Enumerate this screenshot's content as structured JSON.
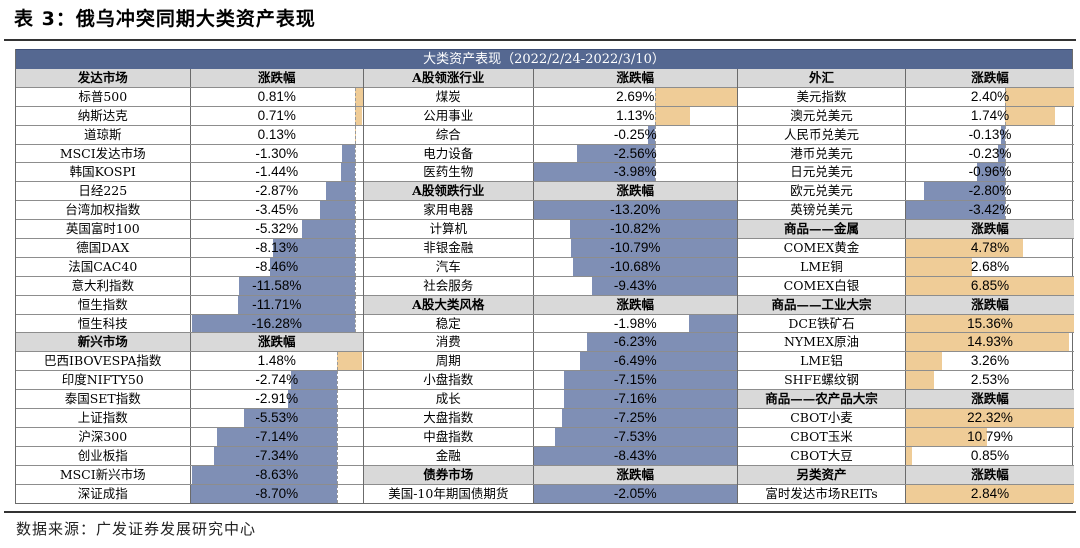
{
  "title": "表 3：俄乌冲突同期大类资产表现",
  "table_title": "大类资产表现（2022/2/24-2022/3/10）",
  "source": "数据来源：广发证券发展研究中心",
  "colors": {
    "band": "#556891",
    "negative_bar": "#7f8fb5",
    "positive_bar": "#efcc97",
    "header_row": "#d9d9d9"
  },
  "columns": [
    {
      "name_width": 175,
      "val_width": 173,
      "sections": [
        {
          "header": "发达市场",
          "value_header": "涨跌幅",
          "zero_pct": 95.4,
          "scale_pct_per_unit": 5.82,
          "rows": [
            {
              "name": "标普500",
              "value": "0.81%",
              "num": 0.81
            },
            {
              "name": "纳斯达克",
              "value": "0.71%",
              "num": 0.71
            },
            {
              "name": "道琼斯",
              "value": "0.13%",
              "num": 0.13
            },
            {
              "name": "MSCI发达市场",
              "value": "-1.30%",
              "num": -1.3
            },
            {
              "name": "韩国KOSPI",
              "value": "-1.44%",
              "num": -1.44
            },
            {
              "name": "日经225",
              "value": "-2.87%",
              "num": -2.87
            },
            {
              "name": "台湾加权指数",
              "value": "-3.45%",
              "num": -3.45
            },
            {
              "name": "英国富时100",
              "value": "-5.32%",
              "num": -5.32
            },
            {
              "name": "德国DAX",
              "value": "-8.13%",
              "num": -8.13
            },
            {
              "name": "法国CAC40",
              "value": "-8.46%",
              "num": -8.46
            },
            {
              "name": "意大利指数",
              "value": "-11.58%",
              "num": -11.58
            },
            {
              "name": "恒生指数",
              "value": "-11.71%",
              "num": -11.71
            },
            {
              "name": "恒生科技",
              "value": "-16.28%",
              "num": -16.28
            }
          ]
        },
        {
          "header": "新兴市场",
          "value_header": "涨跌幅",
          "zero_pct": 85.0,
          "scale_pct_per_unit": 9.75,
          "rows": [
            {
              "name": "巴西IBOVESPA指数",
              "value": "1.48%",
              "num": 1.48
            },
            {
              "name": "印度NIFTY50",
              "value": "-2.74%",
              "num": -2.74
            },
            {
              "name": "泰国SET指数",
              "value": "-2.91%",
              "num": -2.91
            },
            {
              "name": "上证指数",
              "value": "-5.53%",
              "num": -5.53
            },
            {
              "name": "沪深300",
              "value": "-7.14%",
              "num": -7.14
            },
            {
              "name": "创业板指",
              "value": "-7.34%",
              "num": -7.34
            },
            {
              "name": "MSCI新兴市场",
              "value": "-8.63%",
              "num": -8.63
            },
            {
              "name": "深证成指",
              "value": "-8.70%",
              "num": -8.7
            }
          ]
        }
      ]
    },
    {
      "name_width": 170,
      "val_width": 204,
      "sections": [
        {
          "header": "A股领涨行业",
          "value_header": "涨跌幅",
          "zero_pct": 59.8,
          "scale_pct_per_unit": 15.0,
          "rows": [
            {
              "name": "煤炭",
              "value": "2.69%",
              "num": 2.69
            },
            {
              "name": "公用事业",
              "value": "1.13%",
              "num": 1.13
            },
            {
              "name": "综合",
              "value": "-0.25%",
              "num": -0.25
            },
            {
              "name": "电力设备",
              "value": "-2.56%",
              "num": -2.56
            },
            {
              "name": "医药生物",
              "value": "-3.98%",
              "num": -3.98
            }
          ]
        },
        {
          "header": "A股领跌行业",
          "value_header": "涨跌幅",
          "zero_pct": 100,
          "scale_pct_per_unit": 7.57,
          "rows": [
            {
              "name": "家用电器",
              "value": "-13.20%",
              "num": -13.2
            },
            {
              "name": "计算机",
              "value": "-10.82%",
              "num": -10.82
            },
            {
              "name": "非银金融",
              "value": "-10.79%",
              "num": -10.79
            },
            {
              "name": "汽车",
              "value": "-10.68%",
              "num": -10.68
            },
            {
              "name": "社会服务",
              "value": "-9.43%",
              "num": -9.43
            }
          ]
        },
        {
          "header": "A股大类风格",
          "value_header": "涨跌幅",
          "zero_pct": 100,
          "scale_pct_per_unit": 11.86,
          "rows": [
            {
              "name": "稳定",
              "value": "-1.98%",
              "num": -1.98
            },
            {
              "name": "消费",
              "value": "-6.23%",
              "num": -6.23
            },
            {
              "name": "周期",
              "value": "-6.49%",
              "num": -6.49
            },
            {
              "name": "小盘指数",
              "value": "-7.15%",
              "num": -7.15
            },
            {
              "name": "成长",
              "value": "-7.16%",
              "num": -7.16
            },
            {
              "name": "大盘指数",
              "value": "-7.25%",
              "num": -7.25
            },
            {
              "name": "中盘指数",
              "value": "-7.53%",
              "num": -7.53
            },
            {
              "name": "金融",
              "value": "-8.43%",
              "num": -8.43
            }
          ]
        },
        {
          "header": "债券市场",
          "value_header": "涨跌幅",
          "zero_pct": 100,
          "scale_pct_per_unit": 48.8,
          "rows": [
            {
              "name": "美国-10年期国债期货",
              "value": "-2.05%",
              "num": -2.05
            }
          ]
        }
      ]
    },
    {
      "name_width": 168,
      "val_width": 168,
      "sections": [
        {
          "header": "外汇",
          "value_header": "涨跌幅",
          "zero_pct": 59.0,
          "scale_pct_per_unit": 17.2,
          "rows": [
            {
              "name": "美元指数",
              "value": "2.40%",
              "num": 2.4
            },
            {
              "name": "澳元兑美元",
              "value": "1.74%",
              "num": 1.74
            },
            {
              "name": "人民币兑美元",
              "value": "-0.13%",
              "num": -0.13
            },
            {
              "name": "港币兑美元",
              "value": "-0.23%",
              "num": -0.23
            },
            {
              "name": "日元兑美元",
              "value": "-0.96%",
              "num": -0.96
            },
            {
              "name": "欧元兑美元",
              "value": "-2.80%",
              "num": -2.8
            },
            {
              "name": "英镑兑美元",
              "value": "-3.42%",
              "num": -3.42
            }
          ]
        },
        {
          "header": "商品——金属",
          "value_header": "涨跌幅",
          "zero_pct": 0,
          "scale_pct_per_unit": 14.6,
          "rows": [
            {
              "name": "COMEX黄金",
              "value": "4.78%",
              "num": 4.78
            },
            {
              "name": "LME铜",
              "value": "2.68%",
              "num": 2.68
            },
            {
              "name": "COMEX白银",
              "value": "6.85%",
              "num": 6.85
            }
          ]
        },
        {
          "header": "商品——工业大宗",
          "value_header": "涨跌幅",
          "zero_pct": 0,
          "scale_pct_per_unit": 6.51,
          "rows": [
            {
              "name": "DCE铁矿石",
              "value": "15.36%",
              "num": 15.36
            },
            {
              "name": "NYMEX原油",
              "value": "14.93%",
              "num": 14.93
            },
            {
              "name": "LME铝",
              "value": "3.26%",
              "num": 3.26
            },
            {
              "name": "SHFE螺纹钢",
              "value": "2.53%",
              "num": 2.53
            }
          ]
        },
        {
          "header": "商品——农产品大宗",
          "value_header": "涨跌幅",
          "zero_pct": 0,
          "scale_pct_per_unit": 4.48,
          "rows": [
            {
              "name": "CBOT小麦",
              "value": "22.32%",
              "num": 22.32
            },
            {
              "name": "CBOT玉米",
              "value": "10.79%",
              "num": 10.79
            },
            {
              "name": "CBOT大豆",
              "value": "0.85%",
              "num": 0.85
            }
          ]
        },
        {
          "header": "另类资产",
          "value_header": "涨跌幅",
          "zero_pct": 0,
          "scale_pct_per_unit": 35.2,
          "rows": [
            {
              "name": "富时发达市场REITs",
              "value": "2.84%",
              "num": 2.84
            }
          ]
        }
      ]
    }
  ]
}
